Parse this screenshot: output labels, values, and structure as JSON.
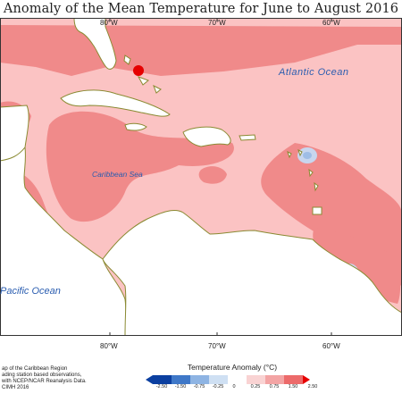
{
  "title": "Anomaly of the Mean Temperature for June to August 2016",
  "longitude_labels": [
    "80°W",
    "70°W",
    "60°W"
  ],
  "ocean_labels": {
    "atlantic": "Atlantic Ocean",
    "caribbean": "Caribbean Sea",
    "pacific": "Pacific Ocean"
  },
  "footer_lines": [
    "ap of the Caribbean Region",
    "ading station based observations,",
    "with NCEP/NCAR Reanalysis Data.",
    "CIMH 2016"
  ],
  "legend": {
    "title": "Temperature Anomaly (°C)",
    "ticks": [
      "-2.50",
      "-1.50",
      "-0.75",
      "-0.25",
      "0",
      "0.25",
      "0.75",
      "1.50",
      "2.50"
    ],
    "colors": [
      "#0b3fa0",
      "#3f78c8",
      "#8eb4e3",
      "#cfe0f3",
      "#ffffff",
      "#f9d3d3",
      "#f3a4a4",
      "#ec6a6a",
      "#e60000"
    ]
  },
  "colors": {
    "land": "#ffffff",
    "coast": "#8a8a32",
    "anomaly_low": "#fbc3c3",
    "anomaly_mid": "#f08a8a",
    "anomaly_high": "#e50000",
    "cool_spot": "#c8d6ee"
  }
}
